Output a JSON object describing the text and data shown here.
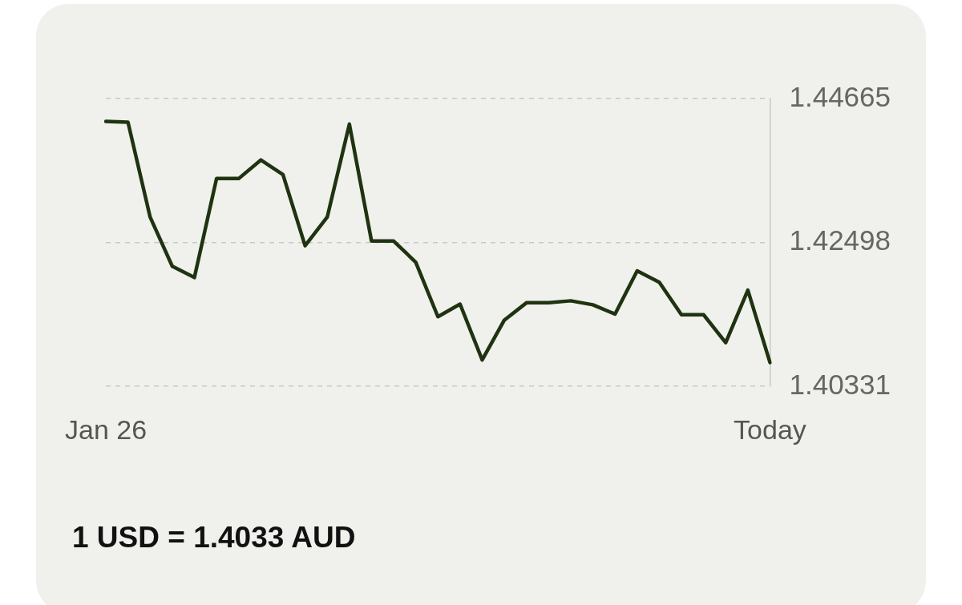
{
  "chart_data": {
    "type": "line",
    "categories": [
      "Jan 26",
      null,
      null,
      null,
      null,
      null,
      null,
      null,
      null,
      null,
      null,
      null,
      null,
      null,
      null,
      null,
      null,
      null,
      null,
      null,
      null,
      null,
      null,
      null,
      null,
      null,
      null,
      null,
      null,
      null,
      "Today"
    ],
    "series": [
      {
        "color": "#1f3311",
        "values": [
          1.4432,
          1.4431,
          1.4288,
          1.4214,
          1.4197,
          1.4346,
          1.4346,
          1.4374,
          1.4352,
          1.4245,
          1.4288,
          1.4428,
          1.4252,
          1.4252,
          1.422,
          1.4138,
          1.4157,
          1.4073,
          1.4133,
          1.4159,
          1.4159,
          1.4162,
          1.4156,
          1.4142,
          1.4207,
          1.419,
          1.4141,
          1.4141,
          1.4099,
          1.4178,
          1.4069
        ]
      }
    ],
    "ylim": [
      1.40331,
      1.44665
    ],
    "yticks": [
      1.40331,
      1.42498,
      1.44665
    ],
    "grid": "y",
    "legend": false,
    "marker": "none",
    "line_style": "solid",
    "annotations": [
      "1 USD = 1.4033 AUD"
    ]
  }
}
